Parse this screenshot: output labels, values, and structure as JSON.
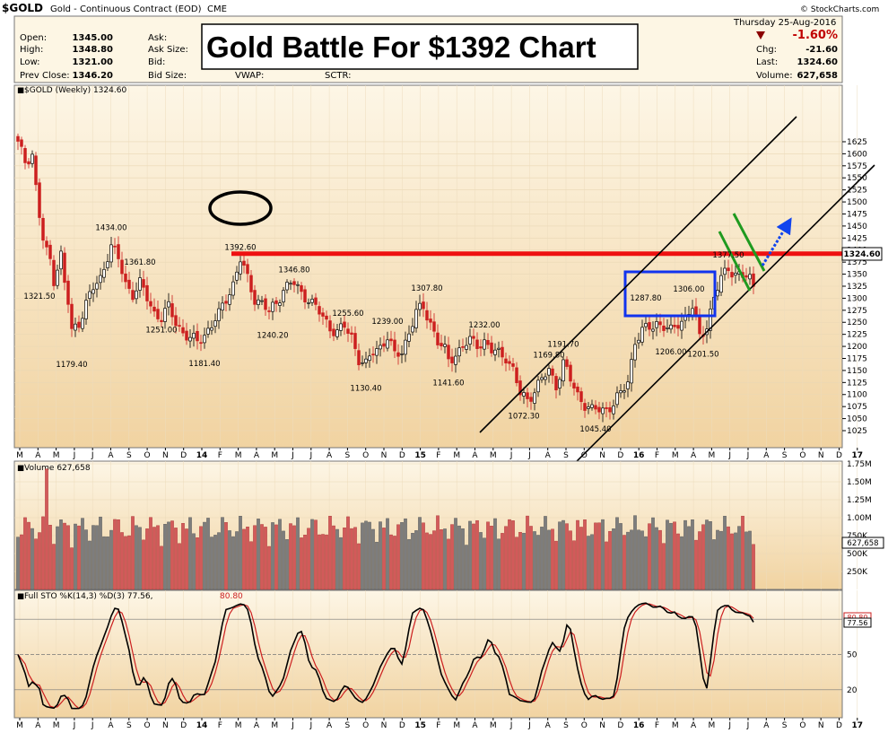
{
  "header": {
    "symbol": "$GOLD",
    "name": "Gold - Continuous Contract (EOD)",
    "exchange": "CME",
    "brand": "© StockCharts.com",
    "date": "Thursday  25-Aug-2016",
    "quote_labels": [
      "Open:",
      "High:",
      "Low:",
      "Prev Close:"
    ],
    "quote_values": [
      "1345.00",
      "1348.80",
      "1321.00",
      "1346.20"
    ],
    "mid_labels": [
      "Ask:",
      "Ask Size:",
      "Bid:",
      "Bid Size:"
    ],
    "extra_labels": [
      "VWAP:",
      "SCTR:"
    ],
    "pct_change": "-1.60%",
    "right_labels": [
      "Chg:",
      "Last:",
      "Volume:"
    ],
    "right_values": [
      "-21.60",
      "1324.60",
      "627,658"
    ],
    "accent": "#c00000"
  },
  "title_box": "Gold Battle For $1392 Chart",
  "price_panel": {
    "legend": "$GOLD (Weekly) 1324.60",
    "last_tag": "1324.60",
    "y_ticks": [
      1025,
      1050,
      1075,
      1100,
      1125,
      1150,
      1175,
      1200,
      1225,
      1250,
      1275,
      1300,
      1325,
      1350,
      1375,
      1400,
      1425,
      1450,
      1475,
      1500,
      1525,
      1550,
      1575,
      1600,
      1625
    ],
    "annotations": [
      {
        "t": "1321.50",
        "i": 6
      },
      {
        "t": "1179.40",
        "i": 15
      },
      {
        "t": "1434.00",
        "i": 26
      },
      {
        "t": "1361.80",
        "i": 34
      },
      {
        "t": "1251.00",
        "i": 40
      },
      {
        "t": "1181.40",
        "i": 52
      },
      {
        "t": "1392.60",
        "i": 62
      },
      {
        "t": "1346.80",
        "i": 77
      },
      {
        "t": "1240.20",
        "i": 71
      },
      {
        "t": "1255.60",
        "i": 92
      },
      {
        "t": "1130.40",
        "i": 97
      },
      {
        "t": "1239.00",
        "i": 103
      },
      {
        "t": "1307.80",
        "i": 114
      },
      {
        "t": "1141.60",
        "i": 120
      },
      {
        "t": "1232.00",
        "i": 130
      },
      {
        "t": "1169.80",
        "i": 148
      },
      {
        "t": "1072.30",
        "i": 141
      },
      {
        "t": "1191.70",
        "i": 152
      },
      {
        "t": "1045.40",
        "i": 161
      },
      {
        "t": "1287.80",
        "i": 175
      },
      {
        "t": "1206.00",
        "i": 182
      },
      {
        "t": "1306.00",
        "i": 187
      },
      {
        "t": "1201.50",
        "i": 191
      },
      {
        "t": "1377.50",
        "i": 198
      }
    ],
    "resistance_level": 1392.6,
    "colors": {
      "up": "#000000",
      "down": "#cc1f1f",
      "resistance": "#ee1111",
      "box": "#1133ee",
      "green": "#1f9a1f",
      "arrow": "#1144ee"
    }
  },
  "volume_panel": {
    "legend": "Volume 627,658",
    "last_tag": "627,658",
    "y_ticks": [
      "250K",
      "500K",
      "750K",
      "1.00M",
      "1.25M",
      "1.50M",
      "1.75M"
    ],
    "y_tick_values": [
      250000,
      500000,
      750000,
      1000000,
      1250000,
      1500000,
      1750000
    ]
  },
  "sto_panel": {
    "legend_prefix": "Full STO %K(14,3) %D(3) 77.56,",
    "legend_d": "80.80",
    "last_k": "77.56",
    "last_d": "80.80",
    "y_ticks": [
      "20",
      "50",
      "80"
    ],
    "y_tick_values": [
      20,
      50,
      80
    ]
  },
  "x_labels": [
    "M",
    "A",
    "M",
    "J",
    "J",
    "A",
    "S",
    "O",
    "N",
    "D",
    "14",
    "F",
    "M",
    "A",
    "M",
    "J",
    "J",
    "A",
    "S",
    "O",
    "N",
    "D",
    "15",
    "F",
    "M",
    "A",
    "M",
    "J",
    "J",
    "A",
    "S",
    "O",
    "N",
    "D",
    "16",
    "F",
    "M",
    "A",
    "M",
    "J",
    "J",
    "A",
    "S",
    "O",
    "N",
    "D",
    "17"
  ],
  "chart_data": {
    "type": "candlestick",
    "title": "Gold Battle For $1392 Chart",
    "symbol": "$GOLD (Weekly)",
    "period": "Mar 2013 - Aug 2016",
    "anchors": [
      [
        0,
        1620
      ],
      [
        2,
        1585
      ],
      [
        4,
        1600
      ],
      [
        5,
        1530
      ],
      [
        6,
        1470
      ],
      [
        7,
        1420
      ],
      [
        8,
        1395
      ],
      [
        9,
        1380
      ],
      [
        10,
        1340
      ],
      [
        12,
        1390
      ],
      [
        13,
        1330
      ],
      [
        14,
        1290
      ],
      [
        15,
        1230
      ],
      [
        17,
        1250
      ],
      [
        19,
        1290
      ],
      [
        21,
        1320
      ],
      [
        23,
        1340
      ],
      [
        25,
        1390
      ],
      [
        26,
        1410
      ],
      [
        28,
        1380
      ],
      [
        30,
        1330
      ],
      [
        32,
        1310
      ],
      [
        34,
        1330
      ],
      [
        36,
        1300
      ],
      [
        38,
        1270
      ],
      [
        40,
        1260
      ],
      [
        42,
        1280
      ],
      [
        44,
        1250
      ],
      [
        46,
        1230
      ],
      [
        48,
        1215
      ],
      [
        50,
        1210
      ],
      [
        52,
        1225
      ],
      [
        54,
        1245
      ],
      [
        56,
        1265
      ],
      [
        58,
        1300
      ],
      [
        60,
        1330
      ],
      [
        62,
        1380
      ],
      [
        64,
        1340
      ],
      [
        66,
        1300
      ],
      [
        68,
        1290
      ],
      [
        70,
        1270
      ],
      [
        72,
        1290
      ],
      [
        74,
        1320
      ],
      [
        76,
        1330
      ],
      [
        77,
        1330
      ],
      [
        79,
        1310
      ],
      [
        81,
        1300
      ],
      [
        83,
        1280
      ],
      [
        85,
        1260
      ],
      [
        87,
        1240
      ],
      [
        89,
        1230
      ],
      [
        91,
        1240
      ],
      [
        93,
        1220
      ],
      [
        95,
        1175
      ],
      [
        97,
        1160
      ],
      [
        99,
        1190
      ],
      [
        101,
        1200
      ],
      [
        103,
        1220
      ],
      [
        105,
        1180
      ],
      [
        107,
        1190
      ],
      [
        109,
        1230
      ],
      [
        111,
        1270
      ],
      [
        113,
        1280
      ],
      [
        115,
        1250
      ],
      [
        117,
        1210
      ],
      [
        119,
        1190
      ],
      [
        120,
        1170
      ],
      [
        122,
        1185
      ],
      [
        124,
        1200
      ],
      [
        126,
        1210
      ],
      [
        128,
        1205
      ],
      [
        130,
        1210
      ],
      [
        132,
        1190
      ],
      [
        134,
        1185
      ],
      [
        136,
        1180
      ],
      [
        138,
        1150
      ],
      [
        140,
        1100
      ],
      [
        142,
        1090
      ],
      [
        144,
        1110
      ],
      [
        146,
        1130
      ],
      [
        148,
        1150
      ],
      [
        150,
        1120
      ],
      [
        152,
        1165
      ],
      [
        154,
        1130
      ],
      [
        156,
        1100
      ],
      [
        158,
        1080
      ],
      [
        160,
        1065
      ],
      [
        162,
        1070
      ],
      [
        164,
        1070
      ],
      [
        166,
        1080
      ],
      [
        168,
        1100
      ],
      [
        170,
        1130
      ],
      [
        172,
        1210
      ],
      [
        174,
        1230
      ],
      [
        176,
        1240
      ],
      [
        178,
        1250
      ],
      [
        180,
        1240
      ],
      [
        182,
        1230
      ],
      [
        184,
        1250
      ],
      [
        186,
        1260
      ],
      [
        188,
        1280
      ],
      [
        190,
        1220
      ],
      [
        192,
        1245
      ],
      [
        194,
        1300
      ],
      [
        196,
        1340
      ],
      [
        198,
        1365
      ],
      [
        200,
        1350
      ],
      [
        202,
        1345
      ],
      [
        204,
        1340
      ],
      [
        205,
        1325
      ]
    ],
    "volume_range": [
      250000,
      1750000
    ],
    "sto_k_last": 77.56,
    "sto_d_last": 80.8,
    "resistance": 1392.6,
    "peak_labels": [
      "1321.50",
      "1179.40",
      "1434.00",
      "1361.80",
      "1251.00",
      "1181.40",
      "1392.60",
      "1346.80",
      "1240.20",
      "1255.60",
      "1130.40",
      "1239.00",
      "1307.80",
      "1141.60",
      "1232.00",
      "1169.80",
      "1072.30",
      "1191.70",
      "1045.40",
      "1287.80",
      "1206.00",
      "1306.00",
      "1201.50",
      "1377.50"
    ]
  }
}
